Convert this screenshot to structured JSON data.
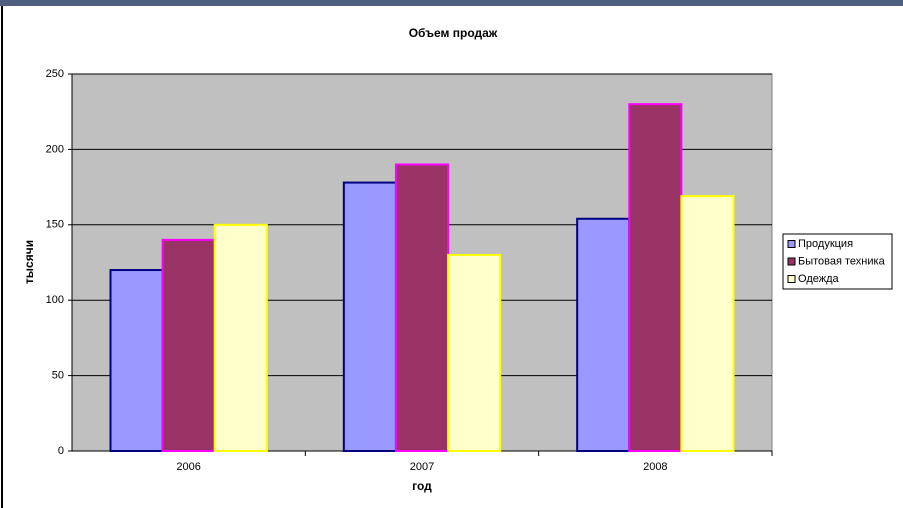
{
  "chart_data": {
    "type": "bar",
    "title": "Объем продаж",
    "x_label": "год",
    "y_label": "тысячи",
    "categories": [
      "2006",
      "2007",
      "2008"
    ],
    "series": [
      {
        "name": "Продукция",
        "color": "#9999ff",
        "border": "#000080",
        "values": [
          120,
          178,
          154
        ]
      },
      {
        "name": "Бытовая техника",
        "color": "#993366",
        "border": "#ff00ff",
        "values": [
          140,
          190,
          230
        ]
      },
      {
        "name": "Одежда",
        "color": "#ffffcc",
        "border": "#ffff00",
        "values": [
          150,
          130,
          169
        ]
      }
    ],
    "ylim": [
      0,
      250
    ],
    "yticks": [
      0,
      50,
      100,
      150,
      200,
      250
    ],
    "grid": true,
    "legend": "right",
    "plot_background": "#c0c0c0"
  }
}
